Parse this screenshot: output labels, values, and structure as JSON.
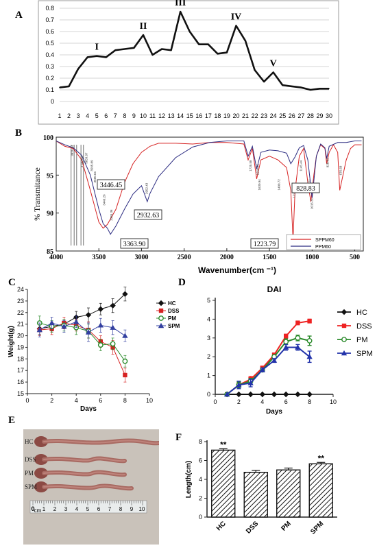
{
  "panel_labels": {
    "A": "A",
    "B": "B",
    "C": "C",
    "D": "D",
    "E": "E",
    "F": "F"
  },
  "chart_data": [
    {
      "id": "A",
      "type": "line",
      "x": [
        1,
        2,
        3,
        4,
        5,
        6,
        7,
        8,
        9,
        10,
        11,
        12,
        13,
        14,
        15,
        16,
        17,
        18,
        19,
        20,
        21,
        22,
        23,
        24,
        25,
        26,
        27,
        28,
        29,
        30
      ],
      "values": [
        0.12,
        0.13,
        0.28,
        0.38,
        0.39,
        0.38,
        0.44,
        0.45,
        0.46,
        0.57,
        0.4,
        0.45,
        0.44,
        0.77,
        0.6,
        0.49,
        0.49,
        0.41,
        0.42,
        0.65,
        0.52,
        0.27,
        0.17,
        0.25,
        0.14,
        0.13,
        0.12,
        0.1,
        0.11,
        0.11
      ],
      "ylim": [
        0,
        0.8
      ],
      "yticks": [
        "0",
        "0.1",
        "0.2",
        "0.3",
        "0.4",
        "0.5",
        "0.6",
        "0.7",
        "0.8"
      ],
      "peaks": [
        {
          "label": "I",
          "x": 5,
          "y": 0.39
        },
        {
          "label": "II",
          "x": 10,
          "y": 0.57
        },
        {
          "label": "III",
          "x": 14,
          "y": 0.77
        },
        {
          "label": "IV",
          "x": 20,
          "y": 0.65
        },
        {
          "label": "V",
          "x": 24,
          "y": 0.25
        }
      ],
      "grid": "horizontal",
      "color": "#111111"
    },
    {
      "id": "B",
      "type": "line",
      "xlabel": "Wavenumber(cm ⁻¹)",
      "ylabel": "% Transmitance",
      "xlim": [
        4000,
        400
      ],
      "ylim": [
        85,
        100
      ],
      "xticks": [
        4000,
        3500,
        3000,
        2500,
        2000,
        1500,
        1000,
        500
      ],
      "yticks": [
        85,
        90,
        95,
        100
      ],
      "series": [
        {
          "name": "SPPM60",
          "color": "#d62222",
          "x": [
            4000,
            3900,
            3800,
            3700,
            3600,
            3500,
            3450,
            3400,
            3300,
            3200,
            3100,
            3000,
            2900,
            2800,
            2600,
            2400,
            2200,
            2000,
            1800,
            1750,
            1700,
            1650,
            1600,
            1500,
            1400,
            1300,
            1250,
            1223.79,
            1200,
            1150,
            1100,
            1050,
            1015,
            980,
            950,
            900,
            850,
            828.83,
            800,
            750,
            700,
            676,
            600,
            550,
            500,
            420
          ],
          "y": [
            99.5,
            98.8,
            98.5,
            97.0,
            93.0,
            88.8,
            88.0,
            88.5,
            90.5,
            94.0,
            96.5,
            98.0,
            98.8,
            99.2,
            99.2,
            99.1,
            99.3,
            99.3,
            99.1,
            97.0,
            98.5,
            94.5,
            97.0,
            97.5,
            97.0,
            96.0,
            93.0,
            86.5,
            93.0,
            97.5,
            98.5,
            94.0,
            91.5,
            95.0,
            97.5,
            99.0,
            98.5,
            96.5,
            98.0,
            99.0,
            98.0,
            93.0,
            97.0,
            98.5,
            99.0,
            99.0
          ]
        },
        {
          "name": "PPM60",
          "color": "#2a2a80",
          "x": [
            4000,
            3900,
            3800,
            3700,
            3600,
            3500,
            3450,
            3400,
            3363.9,
            3300,
            3200,
            3100,
            3000,
            2932.63,
            2900,
            2800,
            2600,
            2400,
            2200,
            2000,
            1800,
            1750,
            1700,
            1650,
            1600,
            1500,
            1400,
            1300,
            1250,
            1200,
            1150,
            1100,
            1050,
            1030,
            1000,
            950,
            900,
            850,
            828.83,
            800,
            700,
            600,
            500,
            420
          ],
          "y": [
            99.5,
            99.0,
            98.6,
            97.6,
            95.0,
            90.5,
            88.6,
            88.0,
            87.2,
            88.3,
            90.5,
            92.5,
            93.6,
            91.5,
            92.6,
            94.8,
            97.3,
            98.7,
            99.3,
            99.5,
            99.5,
            97.5,
            98.8,
            95.8,
            98.0,
            98.3,
            98.2,
            97.9,
            96.5,
            97.4,
            98.6,
            98.9,
            97.0,
            95.0,
            92.0,
            97.5,
            99.1,
            98.6,
            97.2,
            98.8,
            99.3,
            99.3,
            99.5,
            99.5
          ]
        }
      ],
      "callouts": [
        "3446.45",
        "2932.63",
        "3363.90",
        "1223.79",
        "828.83"
      ],
      "small_labels": [
        "3825.34",
        "3710.60",
        "3659.97",
        "3595.89",
        "3560.64",
        "3449.26",
        "3365.36",
        "2952.43",
        "1735.58",
        "1650.55",
        "1630.94",
        "1400.72",
        "1223.79",
        "1145.44",
        "1053.11",
        "1015.31",
        "828.83",
        "676.68"
      ],
      "legend_placement": "bottom-right"
    },
    {
      "id": "C",
      "type": "line",
      "xlabel": "Days",
      "ylabel": "Weight(g)",
      "xlim": [
        0,
        10
      ],
      "ylim": [
        15,
        24
      ],
      "xticks": [
        0,
        2,
        4,
        6,
        8,
        10
      ],
      "yticks": [
        15,
        16,
        17,
        18,
        19,
        20,
        21,
        22,
        23,
        24
      ],
      "x": [
        1,
        2,
        3,
        4,
        5,
        6,
        7,
        8
      ],
      "series": [
        {
          "name": "HC",
          "color": "#111111",
          "marker": "diamond",
          "values": [
            20.6,
            20.8,
            21.0,
            21.6,
            21.8,
            22.3,
            22.6,
            23.6
          ],
          "err": [
            0.5,
            0.4,
            0.4,
            0.5,
            0.6,
            0.5,
            0.6,
            0.6
          ]
        },
        {
          "name": "DSS",
          "color": "#d62222",
          "marker": "square",
          "values": [
            20.5,
            20.6,
            21.1,
            20.9,
            20.5,
            19.5,
            19.0,
            16.6
          ],
          "err": [
            0.5,
            0.5,
            0.5,
            0.5,
            0.7,
            0.5,
            0.6,
            0.6
          ]
        },
        {
          "name": "PM",
          "color": "#2a8a2a",
          "marker": "circle",
          "values": [
            21.1,
            20.8,
            20.9,
            20.7,
            20.4,
            19.2,
            19.3,
            17.8
          ],
          "err": [
            0.6,
            0.5,
            0.5,
            0.6,
            0.6,
            0.5,
            0.5,
            0.5
          ]
        },
        {
          "name": "SPM",
          "color": "#3340a0",
          "marker": "triangle",
          "values": [
            20.5,
            21.1,
            20.8,
            21.2,
            20.3,
            20.9,
            20.7,
            20.0
          ],
          "err": [
            0.6,
            0.5,
            0.5,
            0.5,
            0.8,
            0.6,
            0.6,
            0.5
          ]
        }
      ],
      "legend_placement": "right"
    },
    {
      "id": "D",
      "type": "line",
      "title": "DAI",
      "xlabel": "Days",
      "xlim": [
        0,
        10
      ],
      "ylim": [
        0,
        5
      ],
      "xticks": [
        0,
        2,
        4,
        6,
        8,
        10
      ],
      "yticks": [
        0,
        1,
        2,
        3,
        4,
        5
      ],
      "x": [
        1,
        2,
        3,
        4,
        5,
        6,
        7,
        8
      ],
      "series": [
        {
          "name": "HC",
          "color": "#111111",
          "marker": "diamond",
          "values": [
            0,
            0,
            0,
            0,
            0,
            0,
            0,
            0
          ],
          "err": [
            0,
            0,
            0,
            0,
            0,
            0,
            0,
            0
          ]
        },
        {
          "name": "DSS",
          "color": "#ee2222",
          "marker": "square",
          "values": [
            0,
            0.5,
            0.8,
            1.4,
            2.1,
            3.1,
            3.8,
            3.9
          ],
          "err": [
            0.05,
            0.15,
            0.15,
            0.1,
            0.1,
            0.1,
            0.1,
            0.1
          ]
        },
        {
          "name": "PM",
          "color": "#2a8a2a",
          "marker": "circle",
          "values": [
            0,
            0.5,
            0.7,
            1.3,
            2.0,
            2.8,
            3.0,
            2.85
          ],
          "err": [
            0.05,
            0.15,
            0.15,
            0.1,
            0.1,
            0.15,
            0.15,
            0.25
          ]
        },
        {
          "name": "SPM",
          "color": "#2233aa",
          "marker": "triangle",
          "values": [
            0,
            0.5,
            0.6,
            1.3,
            1.8,
            2.5,
            2.5,
            2.0
          ],
          "err": [
            0.05,
            0.2,
            0.2,
            0.1,
            0.1,
            0.15,
            0.15,
            0.3
          ]
        }
      ],
      "legend_placement": "right"
    },
    {
      "id": "F",
      "type": "bar",
      "ylabel": "Length(cm)",
      "categories": [
        "HC",
        "DSS",
        "PM",
        "SPM"
      ],
      "values": [
        7.1,
        4.75,
        5.0,
        5.65
      ],
      "err": [
        0.15,
        0.2,
        0.2,
        0.15
      ],
      "significance": [
        "**",
        "",
        "",
        "**"
      ],
      "ylim": [
        0,
        8
      ],
      "yticks": [
        0,
        2,
        4,
        6,
        8
      ],
      "pattern": "diagonal-hatch"
    }
  ],
  "photo_E": {
    "samples": [
      "HC",
      "DSS",
      "PM",
      "SPM"
    ],
    "ruler_numbers": [
      "0",
      "cm",
      "1",
      "2",
      "3",
      "4",
      "5",
      "6",
      "7",
      "8",
      "9",
      "10"
    ]
  }
}
